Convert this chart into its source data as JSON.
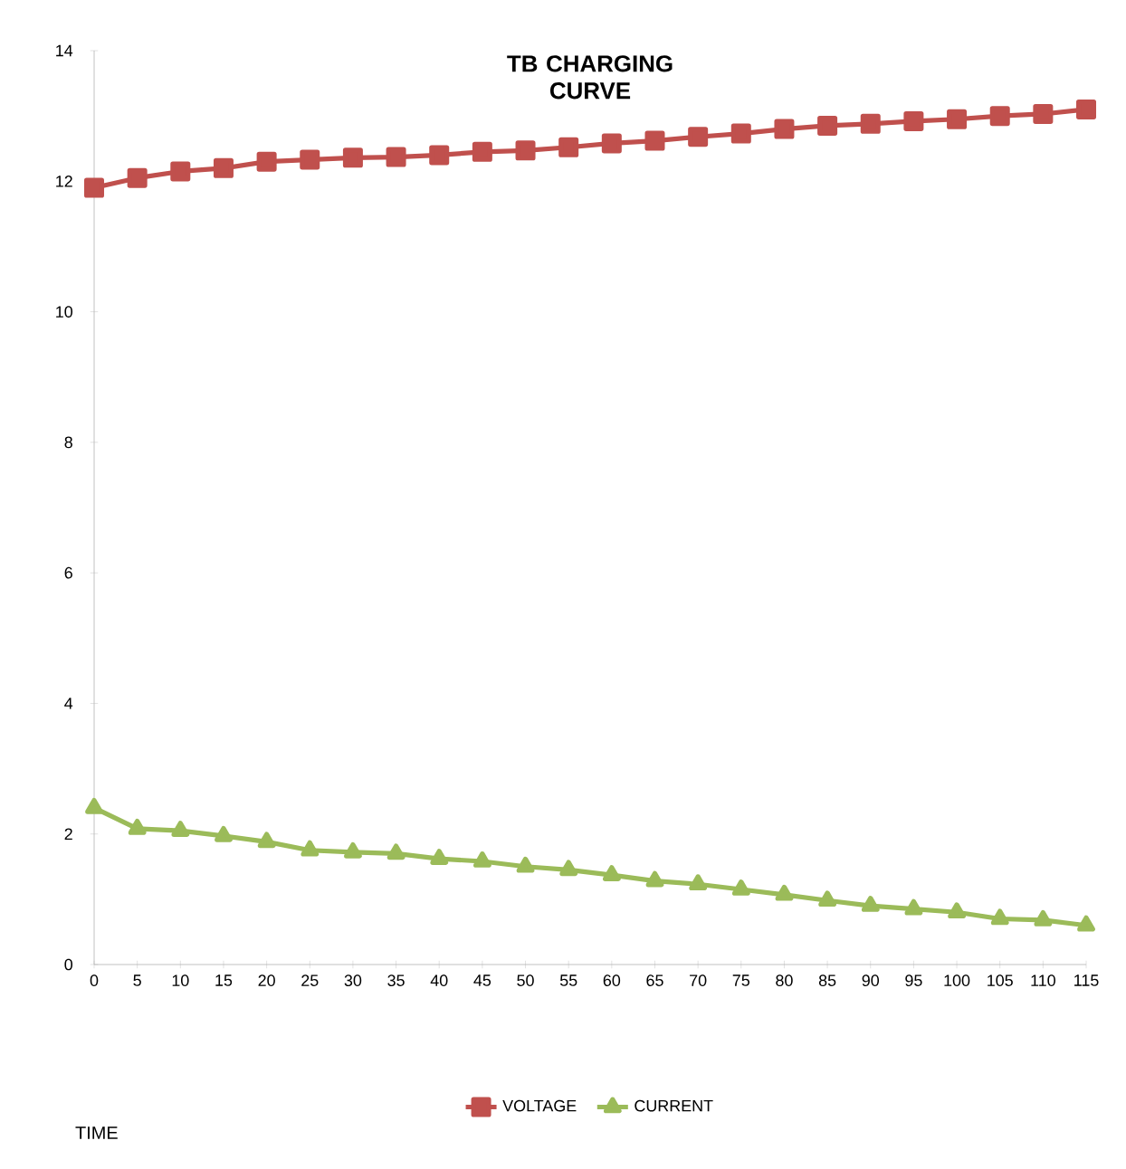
{
  "chart_data": {
    "type": "line",
    "title": "TB CHARGING CURVE",
    "annotations": [
      "TIME"
    ],
    "categories": [
      "0",
      "5",
      "10",
      "15",
      "20",
      "25",
      "30",
      "35",
      "40",
      "45",
      "50",
      "55",
      "60",
      "65",
      "70",
      "75",
      "80",
      "85",
      "90",
      "95",
      "100",
      "105",
      "110",
      "115"
    ],
    "series": [
      {
        "name": "VOLTAGE",
        "color": "#c0504d",
        "marker": "square",
        "values": [
          11.9,
          12.05,
          12.15,
          12.2,
          12.3,
          12.33,
          12.36,
          12.37,
          12.4,
          12.45,
          12.47,
          12.52,
          12.58,
          12.62,
          12.68,
          12.73,
          12.8,
          12.85,
          12.88,
          12.92,
          12.95,
          13.0,
          13.03,
          13.1
        ]
      },
      {
        "name": "CURRENT",
        "color": "#9bbb59",
        "marker": "triangle",
        "values": [
          2.4,
          2.08,
          2.05,
          1.97,
          1.88,
          1.75,
          1.72,
          1.7,
          1.62,
          1.58,
          1.5,
          1.45,
          1.37,
          1.28,
          1.23,
          1.15,
          1.07,
          0.98,
          0.9,
          0.85,
          0.8,
          0.7,
          0.68,
          0.6
        ]
      }
    ],
    "ylim": [
      0,
      14
    ],
    "yticks": [
      0,
      2,
      4,
      6,
      8,
      10,
      12,
      14
    ],
    "grid": false,
    "legend": "bottom",
    "line_style": "solid"
  }
}
